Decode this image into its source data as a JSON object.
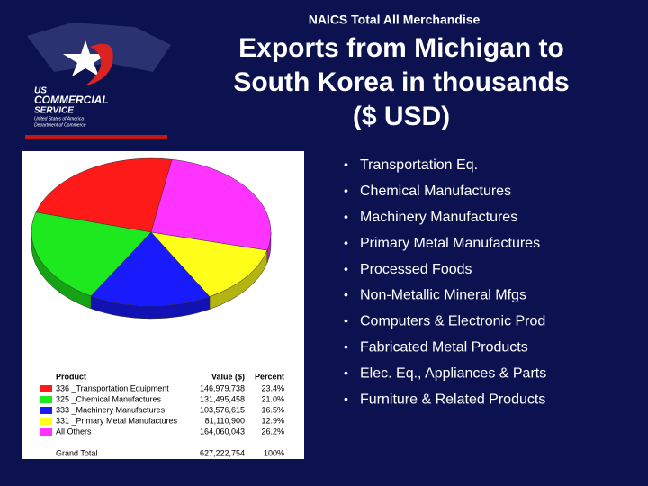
{
  "header": {
    "kicker": "NAICS Total All Merchandise",
    "title_lines": [
      "Exports from Michigan to",
      "South Korea in thousands",
      "($ USD)"
    ]
  },
  "logo": {
    "lines": [
      "US",
      "COMMERCIAL",
      "SERVICE",
      "United States of America",
      "Department of Commerce"
    ]
  },
  "bullets": [
    "Transportation Eq.",
    "Chemical Manufactures",
    "Machinery  Manufactures",
    "Primary Metal Manufactures",
    " Processed Foods",
    "Non-Metallic Mineral Mfgs",
    "Computers & Electronic Prod",
    "Fabricated Metal Products",
    "Elec. Eq., Appliances & Parts",
    "Furniture & Related Products"
  ],
  "table": {
    "header": [
      "Product",
      "Value ($)",
      "Percent"
    ],
    "total": [
      "Grand Total",
      "627,222,754",
      "100%"
    ]
  },
  "chart_data": {
    "type": "pie",
    "categories": [
      "336 _Transportation Equipment",
      "325 _Chemical Manufactures",
      "333 _Machinery Manufactures",
      "331 _Primary Metal Manufactures",
      "All Others"
    ],
    "values": [
      146979738,
      131495458,
      103576615,
      81110900,
      164060043
    ],
    "value_labels": [
      "146,979,738",
      "131,495,458",
      "103,576,615",
      "81,110,900",
      "164,060,043"
    ],
    "percent_labels": [
      "23.4%",
      "21.0%",
      "16.5%",
      "12.9%",
      "26.2%"
    ],
    "colors": [
      "#ff1a1a",
      "#1ee81e",
      "#1a1aff",
      "#ffff1a",
      "#ff33ff"
    ]
  }
}
